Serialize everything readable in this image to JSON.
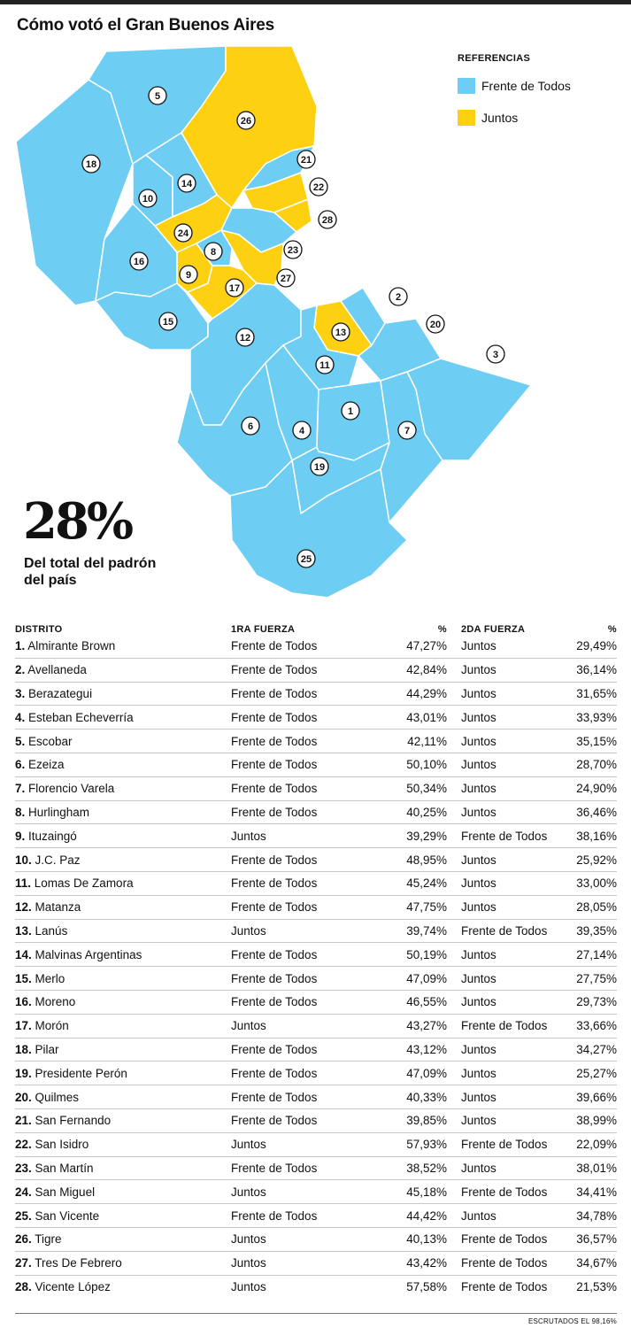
{
  "title": "Cómo votó el Gran Buenos Aires",
  "colors": {
    "frente": "#6ecdf3",
    "juntos": "#fdd012",
    "border": "#ffffff"
  },
  "legend": {
    "title": "REFERENCIAS",
    "items": [
      {
        "label": "Frente de Todos",
        "color": "#6ecdf3"
      },
      {
        "label": "Juntos",
        "color": "#fdd012"
      }
    ]
  },
  "stat": {
    "value": "28%",
    "caption": "Del total del padrón del país"
  },
  "map_labels": [
    "1",
    "2",
    "3",
    "4",
    "5",
    "6",
    "7",
    "8",
    "9",
    "10",
    "11",
    "12",
    "13",
    "14",
    "15",
    "16",
    "17",
    "18",
    "19",
    "20",
    "21",
    "22",
    "23",
    "24",
    "25",
    "26",
    "27",
    "28"
  ],
  "table": {
    "headers": {
      "district": "DISTRITO",
      "first": "1RA FUERZA",
      "pct1": "%",
      "second": "2DA FUERZA",
      "pct2": "%"
    },
    "rows": [
      {
        "num": "1.",
        "name": "Almirante Brown",
        "first": "Frente de Todos",
        "p1": "47,27%",
        "second": "Juntos",
        "p2": "29,49%"
      },
      {
        "num": "2.",
        "name": "Avellaneda",
        "first": "Frente de Todos",
        "p1": "42,84%",
        "second": "Juntos",
        "p2": "36,14%"
      },
      {
        "num": "3.",
        "name": "Berazategui",
        "first": "Frente de Todos",
        "p1": "44,29%",
        "second": "Juntos",
        "p2": "31,65%"
      },
      {
        "num": "4.",
        "name": "Esteban Echeverría",
        "first": "Frente de Todos",
        "p1": "43,01%",
        "second": "Juntos",
        "p2": "33,93%"
      },
      {
        "num": "5.",
        "name": "Escobar",
        "first": "Frente de Todos",
        "p1": "42,11%",
        "second": "Juntos",
        "p2": "35,15%"
      },
      {
        "num": "6.",
        "name": "Ezeiza",
        "first": "Frente de Todos",
        "p1": "50,10%",
        "second": "Juntos",
        "p2": "28,70%"
      },
      {
        "num": "7.",
        "name": "Florencio Varela",
        "first": "Frente de Todos",
        "p1": "50,34%",
        "second": "Juntos",
        "p2": "24,90%"
      },
      {
        "num": "8.",
        "name": "Hurlingham",
        "first": "Frente de Todos",
        "p1": "40,25%",
        "second": "Juntos",
        "p2": "36,46%"
      },
      {
        "num": "9.",
        "name": "Ituzaingó",
        "first": "Juntos",
        "p1": "39,29%",
        "second": "Frente de Todos",
        "p2": "38,16%"
      },
      {
        "num": "10.",
        "name": "J.C. Paz",
        "first": "Frente de Todos",
        "p1": "48,95%",
        "second": "Juntos",
        "p2": "25,92%"
      },
      {
        "num": "11.",
        "name": "Lomas De Zamora",
        "first": "Frente de Todos",
        "p1": "45,24%",
        "second": "Juntos",
        "p2": "33,00%"
      },
      {
        "num": "12.",
        "name": "Matanza",
        "first": "Frente de Todos",
        "p1": "47,75%",
        "second": "Juntos",
        "p2": "28,05%"
      },
      {
        "num": "13.",
        "name": "Lanús",
        "first": "Juntos",
        "p1": "39,74%",
        "second": "Frente de Todos",
        "p2": "39,35%"
      },
      {
        "num": "14.",
        "name": "Malvinas Argentinas",
        "first": "Frente de Todos",
        "p1": "50,19%",
        "second": "Juntos",
        "p2": "27,14%"
      },
      {
        "num": "15.",
        "name": "Merlo",
        "first": "Frente de Todos",
        "p1": "47,09%",
        "second": "Juntos",
        "p2": "27,75%"
      },
      {
        "num": "16.",
        "name": "Moreno",
        "first": "Frente de Todos",
        "p1": "46,55%",
        "second": "Juntos",
        "p2": "29,73%"
      },
      {
        "num": "17.",
        "name": "Morón",
        "first": "Juntos",
        "p1": "43,27%",
        "second": "Frente de Todos",
        "p2": "33,66%"
      },
      {
        "num": "18.",
        "name": "Pilar",
        "first": "Frente de Todos",
        "p1": "43,12%",
        "second": "Juntos",
        "p2": "34,27%"
      },
      {
        "num": "19.",
        "name": "Presidente Perón",
        "first": "Frente de Todos",
        "p1": "47,09%",
        "second": "Juntos",
        "p2": "25,27%"
      },
      {
        "num": "20.",
        "name": "Quilmes",
        "first": "Frente de Todos",
        "p1": "40,33%",
        "second": "Juntos",
        "p2": "39,66%"
      },
      {
        "num": "21.",
        "name": "San Fernando",
        "first": "Frente de Todos",
        "p1": "39,85%",
        "second": "Juntos",
        "p2": "38,99%"
      },
      {
        "num": "22.",
        "name": "San Isidro",
        "first": "Juntos",
        "p1": "57,93%",
        "second": "Frente de Todos",
        "p2": "22,09%"
      },
      {
        "num": "23.",
        "name": "San Martín",
        "first": "Frente de Todos",
        "p1": "38,52%",
        "second": "Juntos",
        "p2": "38,01%"
      },
      {
        "num": "24.",
        "name": "San Miguel",
        "first": "Juntos",
        "p1": "45,18%",
        "second": "Frente de Todos",
        "p2": "34,41%"
      },
      {
        "num": "25.",
        "name": "San Vicente",
        "first": "Frente de Todos",
        "p1": "44,42%",
        "second": "Juntos",
        "p2": "34,78%"
      },
      {
        "num": "26.",
        "name": "Tigre",
        "first": "Juntos",
        "p1": "40,13%",
        "second": "Frente de Todos",
        "p2": "36,57%"
      },
      {
        "num": "27.",
        "name": "Tres De Febrero",
        "first": "Juntos",
        "p1": "43,42%",
        "second": "Frente de Todos",
        "p2": "34,67%"
      },
      {
        "num": "28.",
        "name": "Vicente López",
        "first": "Juntos",
        "p1": "57,58%",
        "second": "Frente de Todos",
        "p2": "21,53%"
      }
    ]
  },
  "footnote": "ESCRUTADOS EL 98,16%"
}
